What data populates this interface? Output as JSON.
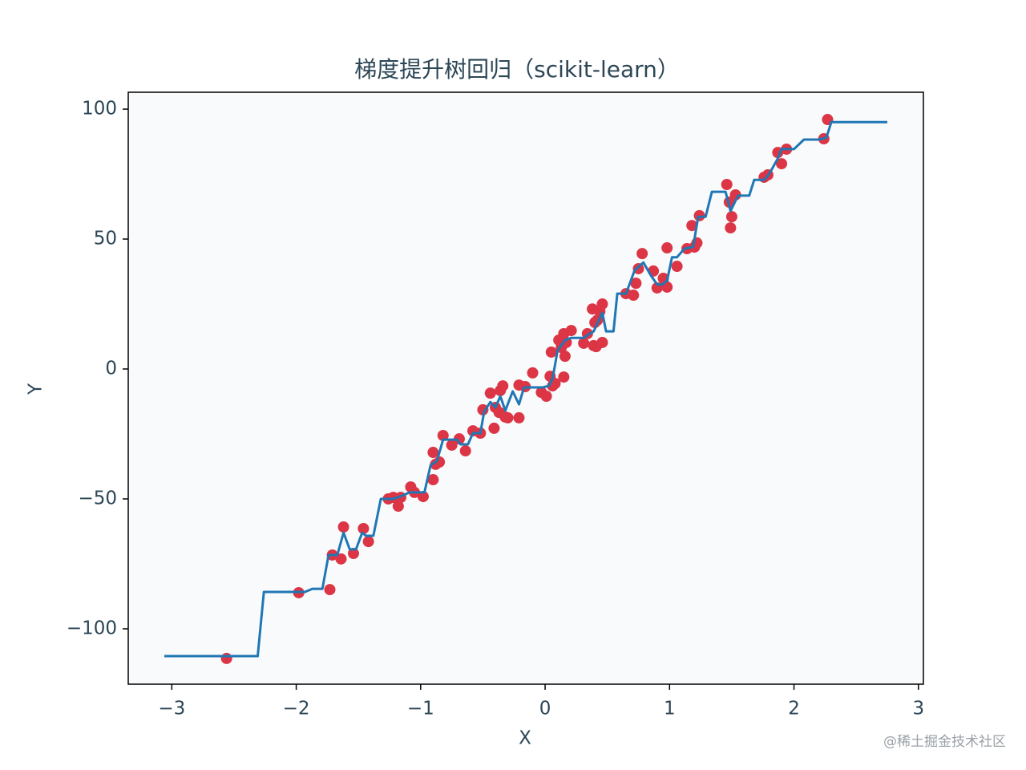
{
  "chart_data": {
    "type": "scatter",
    "title": "梯度提升树回归（scikit-learn）",
    "x_label": "X",
    "y_label": "Y",
    "watermark": "@稀土掘金技术社区",
    "xlim": [
      -3.35,
      3.04
    ],
    "ylim": [
      -121.3,
      106.5
    ],
    "xticks": [
      {
        "value": -3,
        "label": "−3"
      },
      {
        "value": -2,
        "label": "−2"
      },
      {
        "value": -1,
        "label": "−1"
      },
      0,
      1,
      2,
      3
    ],
    "yticks": [
      {
        "value": -100,
        "label": "−100"
      },
      {
        "value": -50,
        "label": "−50"
      },
      0,
      50,
      100
    ],
    "plot_background": "#f8fafc",
    "series": [
      {
        "type": "scatter",
        "color": "#dc3545",
        "x": [
          -2.56,
          -1.98,
          -1.73,
          -1.71,
          -1.64,
          -1.62,
          -1.54,
          -1.46,
          -1.42,
          -1.26,
          -1.22,
          -1.18,
          -1.16,
          -1.08,
          -1.05,
          -0.98,
          -0.9,
          -0.9,
          -0.88,
          -0.85,
          -0.82,
          -0.75,
          -0.69,
          -0.64,
          -0.58,
          -0.52,
          -0.5,
          -0.44,
          -0.41,
          -0.4,
          -0.37,
          -0.36,
          -0.34,
          -0.32,
          -0.3,
          -0.21,
          -0.21,
          -0.16,
          -0.1,
          -0.03,
          0.01,
          0.04,
          0.05,
          0.06,
          0.08,
          0.11,
          0.13,
          0.15,
          0.15,
          0.16,
          0.17,
          0.21,
          0.31,
          0.34,
          0.38,
          0.39,
          0.4,
          0.41,
          0.42,
          0.44,
          0.46,
          0.46,
          0.65,
          0.71,
          0.73,
          0.75,
          0.78,
          0.87,
          0.9,
          0.95,
          0.96,
          0.98,
          0.98,
          1.06,
          1.14,
          1.18,
          1.2,
          1.22,
          1.24,
          1.46,
          1.48,
          1.5,
          1.49,
          1.53,
          1.76,
          1.79,
          1.87,
          1.9,
          1.94,
          2.24,
          2.27
        ],
        "values": [
          -111.4,
          -86.1,
          -84.9,
          -71.6,
          -73.1,
          -60.8,
          -71.0,
          -61.4,
          -66.4,
          -50.0,
          -49.4,
          -52.8,
          -49.4,
          -45.4,
          -47.5,
          -49.1,
          -32.1,
          -42.6,
          -36.7,
          -35.8,
          -25.6,
          -29.3,
          -26.9,
          -31.5,
          -23.8,
          -24.7,
          -15.7,
          -9.3,
          -22.8,
          -14.8,
          -16.7,
          -8.3,
          -6.5,
          -18.5,
          -18.8,
          -18.8,
          -6.2,
          -6.8,
          -1.5,
          -9.0,
          -10.5,
          -2.8,
          6.5,
          -6.5,
          -5.6,
          11.1,
          8.3,
          13.6,
          -3.1,
          4.9,
          10.2,
          14.8,
          9.9,
          13.6,
          23.1,
          9.0,
          17.9,
          8.6,
          18.8,
          22.2,
          10.2,
          25.0,
          29.0,
          28.4,
          33.0,
          38.6,
          44.4,
          37.7,
          31.2,
          34.9,
          32.4,
          31.5,
          46.6,
          39.5,
          46.3,
          55.2,
          46.9,
          48.5,
          59.0,
          71.0,
          64.2,
          58.6,
          54.3,
          67.0,
          73.8,
          74.7,
          83.3,
          79.0,
          84.6,
          88.6,
          96.0
        ]
      },
      {
        "type": "line",
        "color": "#1f77b4",
        "x": [
          -3.06,
          -2.31,
          -2.26,
          -1.93,
          -1.87,
          -1.79,
          -1.74,
          -1.67,
          -1.62,
          -1.57,
          -1.52,
          -1.47,
          -1.44,
          -1.38,
          -1.32,
          -1.22,
          -1.15,
          -1.09,
          -0.97,
          -0.92,
          -0.87,
          -0.82,
          -0.71,
          -0.68,
          -0.62,
          -0.58,
          -0.52,
          -0.49,
          -0.44,
          -0.4,
          -0.36,
          -0.32,
          -0.26,
          -0.21,
          -0.17,
          -0.02,
          0.03,
          0.06,
          0.1,
          0.16,
          0.21,
          0.31,
          0.35,
          0.39,
          0.42,
          0.46,
          0.49,
          0.55,
          0.58,
          0.65,
          0.72,
          0.79,
          0.85,
          0.9,
          0.94,
          0.98,
          1.02,
          1.06,
          1.12,
          1.19,
          1.23,
          1.29,
          1.34,
          1.45,
          1.49,
          1.55,
          1.64,
          1.68,
          1.76,
          1.8,
          1.87,
          1.9,
          2.0,
          2.08,
          2.2,
          2.26,
          2.3,
          2.75
        ],
        "values": [
          -110.5,
          -110.5,
          -85.8,
          -85.8,
          -84.6,
          -84.6,
          -71.6,
          -71.6,
          -63.0,
          -69.4,
          -69.4,
          -63.0,
          -64.2,
          -64.2,
          -50.0,
          -50.0,
          -48.8,
          -47.5,
          -47.5,
          -37.0,
          -35.5,
          -27.2,
          -27.2,
          -29.0,
          -29.0,
          -24.7,
          -24.7,
          -16.4,
          -12.7,
          -14.8,
          -10.5,
          -16.0,
          -8.6,
          -13.6,
          -7.1,
          -7.1,
          -6.5,
          -3.7,
          7.1,
          11.1,
          12.0,
          12.0,
          13.3,
          14.5,
          17.6,
          21.6,
          14.5,
          14.5,
          29.0,
          29.0,
          38.0,
          41.0,
          36.0,
          32.5,
          32.5,
          34.0,
          43.0,
          43.0,
          46.3,
          47.0,
          58.6,
          58.6,
          68.2,
          68.2,
          60.8,
          66.7,
          66.7,
          72.8,
          72.8,
          75.0,
          81.0,
          84.6,
          84.6,
          88.3,
          88.3,
          89.0,
          95.0,
          95.0
        ]
      }
    ]
  }
}
